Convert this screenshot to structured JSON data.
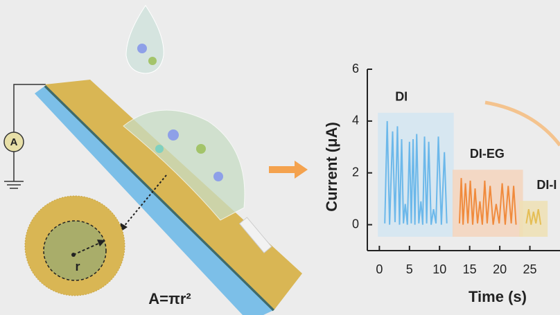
{
  "illustration": {
    "ammeter_label": "A",
    "radius_label": "r",
    "area_formula": "A=πr²"
  },
  "chart_data": {
    "type": "line",
    "xlabel": "Time (s)",
    "ylabel": "Current (μA)",
    "xlim": [
      -2,
      30
    ],
    "ylim": [
      -1,
      6
    ],
    "xticks": [
      0,
      5,
      10,
      15,
      20,
      25
    ],
    "yticks": [
      0,
      2,
      4,
      6
    ],
    "series": [
      {
        "name": "DI",
        "color": "#6cb8ea",
        "x": [
          0.9,
          1.3,
          1.7,
          2.2,
          2.6,
          3.0,
          3.35,
          3.7,
          4.0,
          4.3,
          4.65,
          5.0,
          5.3,
          5.6,
          5.9,
          6.2,
          6.55,
          6.9,
          7.2,
          7.5,
          7.85,
          8.2,
          8.6,
          9.0,
          9.4,
          9.8,
          10.3,
          10.8,
          11.2
        ],
        "values": [
          0.05,
          4.0,
          0,
          3.6,
          0.1,
          3.8,
          0,
          3.3,
          0.05,
          0.8,
          0,
          3.2,
          0.05,
          3.3,
          0,
          3.5,
          0.05,
          0.9,
          0,
          3.4,
          0.05,
          3.2,
          0,
          0.6,
          0.05,
          3.4,
          0,
          2.8,
          0.05
        ]
      },
      {
        "name": "DI-EG",
        "color": "#f08a3c",
        "x": [
          13.3,
          13.6,
          13.9,
          14.3,
          14.7,
          15.1,
          15.5,
          15.9,
          16.3,
          16.7,
          17.1,
          17.5,
          17.9,
          18.4,
          18.9,
          19.4,
          19.9,
          20.4,
          20.9,
          21.4,
          21.9,
          22.3,
          22.7
        ],
        "values": [
          0.05,
          1.8,
          0,
          1.6,
          0.05,
          1.7,
          0,
          1.4,
          0.05,
          0.9,
          0,
          1.7,
          0.05,
          1.5,
          0,
          0.8,
          0.05,
          1.6,
          0,
          1.5,
          0.05,
          1.5,
          0
        ]
      },
      {
        "name": "DI-I",
        "color": "#e5be55",
        "x": [
          24.4,
          24.8,
          25.2,
          25.6,
          26.0,
          26.4,
          26.8
        ],
        "values": [
          0.05,
          0.6,
          0,
          0.5,
          0.05,
          0.6,
          0
        ]
      }
    ]
  }
}
